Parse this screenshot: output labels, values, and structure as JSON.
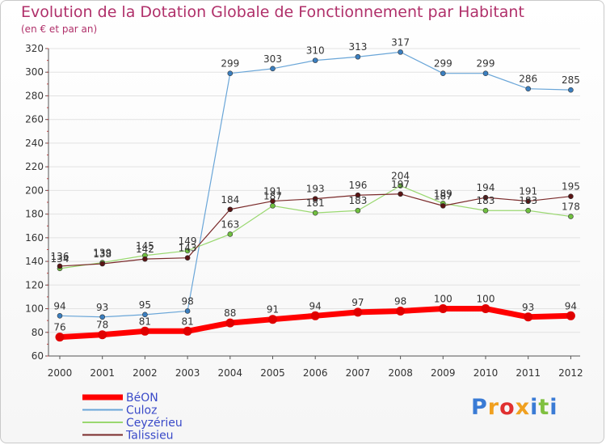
{
  "title": "Evolution de la Dotation Globale de Fonctionnement par Habitant",
  "subtitle": "(en € et par an)",
  "logo": {
    "letters": [
      "P",
      "r",
      "o",
      "x",
      "i",
      "t",
      "i"
    ],
    "colors": [
      "#3a7bd5",
      "#f0a020",
      "#e03030",
      "#f0a020",
      "#3a7bd5",
      "#80c040",
      "#3a7bd5"
    ]
  },
  "chart_data": {
    "type": "line",
    "title": "Evolution de la Dotation Globale de Fonctionnement par Habitant",
    "subtitle": "(en € et par an)",
    "x": [
      "2000",
      "2001",
      "2002",
      "2003",
      "2004",
      "2005",
      "2006",
      "2007",
      "2008",
      "2009",
      "2010",
      "2011",
      "2012"
    ],
    "ylim": [
      60,
      320
    ],
    "yticks": [
      "60",
      "80",
      "100",
      "120",
      "140",
      "160",
      "180",
      "200",
      "220",
      "240",
      "260",
      "280",
      "300",
      "320"
    ],
    "legend_position": "bottom-left",
    "series": [
      {
        "name": "BéON",
        "color": "#ff0000",
        "dot": "#e00000",
        "width": 7,
        "values": [
          76,
          78,
          81,
          81,
          88,
          91,
          94,
          97,
          98,
          100,
          100,
          93,
          94
        ],
        "labels": [
          "76",
          "78",
          "81",
          "81",
          "88",
          "91",
          "94",
          "97",
          "98",
          "100",
          "100",
          "93",
          "94"
        ]
      },
      {
        "name": "Culoz",
        "color": "#6aa6d8",
        "dot": "#3b7fc0",
        "width": 1.2,
        "values": [
          94,
          93,
          95,
          98,
          299,
          303,
          310,
          313,
          317,
          299,
          299,
          286,
          285
        ],
        "labels": [
          "94",
          "93",
          "95",
          "98",
          "299",
          "303",
          "310",
          "313",
          "317",
          "299",
          "299",
          "286",
          "285"
        ]
      },
      {
        "name": "Ceyzérieu",
        "color": "#9ad870",
        "dot": "#70c040",
        "width": 1.2,
        "values": [
          134,
          139,
          145,
          149,
          163,
          187,
          181,
          183,
          204,
          189,
          183,
          183,
          178
        ],
        "labels": [
          "134",
          "139",
          "145",
          "149",
          "163",
          "187",
          "181",
          "183",
          "204",
          "189",
          "183",
          "183",
          "178"
        ]
      },
      {
        "name": "Talissieu",
        "color": "#7a2a2a",
        "dot": "#5a1414",
        "width": 1.2,
        "values": [
          136,
          138,
          142,
          143,
          184,
          191,
          193,
          196,
          197,
          187,
          194,
          191,
          195
        ],
        "labels": [
          "136",
          "138",
          "142",
          "143",
          "184",
          "191",
          "193",
          "196",
          "197",
          "187",
          "194",
          "191",
          "195"
        ]
      }
    ]
  }
}
